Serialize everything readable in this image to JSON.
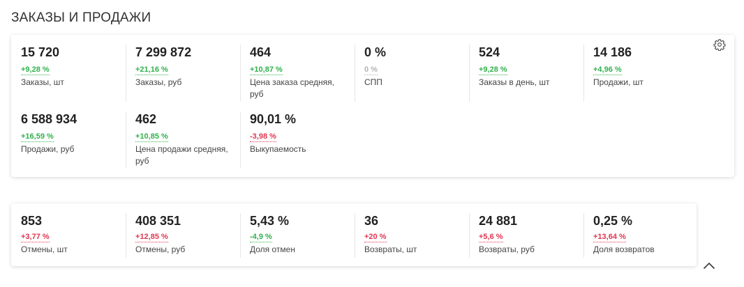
{
  "section": {
    "title": "ЗАКАЗЫ И ПРОДАЖИ"
  },
  "orders_sales": {
    "metrics": [
      {
        "value": "15 720",
        "delta": "+9,28 %",
        "trend": "pos",
        "label": "Заказы, шт"
      },
      {
        "value": "7 299 872",
        "delta": "+21,16 %",
        "trend": "pos",
        "label": "Заказы, руб"
      },
      {
        "value": "464",
        "delta": "+10,87 %",
        "trend": "pos",
        "label": "Цена заказа средняя, руб"
      },
      {
        "value": "0 %",
        "delta": "0 %",
        "trend": "zero",
        "label": "СПП"
      },
      {
        "value": "524",
        "delta": "+9,28 %",
        "trend": "pos",
        "label": "Заказы в день, шт"
      },
      {
        "value": "14 186",
        "delta": "+4,96 %",
        "trend": "pos",
        "label": "Продажи, шт"
      },
      {
        "value": "6 588 934",
        "delta": "+16,59 %",
        "trend": "pos",
        "label": "Продажи, руб"
      },
      {
        "value": "462",
        "delta": "+10,85 %",
        "trend": "pos",
        "label": "Цена продажи средняя, руб"
      },
      {
        "value": "90,01 %",
        "delta": "-3,98 %",
        "trend": "neg",
        "label": "Выкупаемость"
      }
    ]
  },
  "returns": {
    "metrics": [
      {
        "value": "853",
        "delta": "+3,77 %",
        "trend": "neg",
        "label": "Отмены, шт"
      },
      {
        "value": "408 351",
        "delta": "+12,85 %",
        "trend": "neg",
        "label": "Отмены, руб"
      },
      {
        "value": "5,43 %",
        "delta": "-4,9 %",
        "trend": "pos",
        "label": "Доля отмен"
      },
      {
        "value": "36",
        "delta": "+20 %",
        "trend": "neg",
        "label": "Возвраты, шт"
      },
      {
        "value": "24 881",
        "delta": "+5,6 %",
        "trend": "neg",
        "label": "Возвраты, руб"
      },
      {
        "value": "0,25 %",
        "delta": "+13,64 %",
        "trend": "neg",
        "label": "Доля возвратов"
      }
    ]
  },
  "icons": {
    "settings": "gear-icon",
    "collapse": "chevron-up-icon"
  },
  "colors": {
    "positive": "#2fb24c",
    "negative": "#e0354f",
    "neutral": "#b3b3b3"
  }
}
